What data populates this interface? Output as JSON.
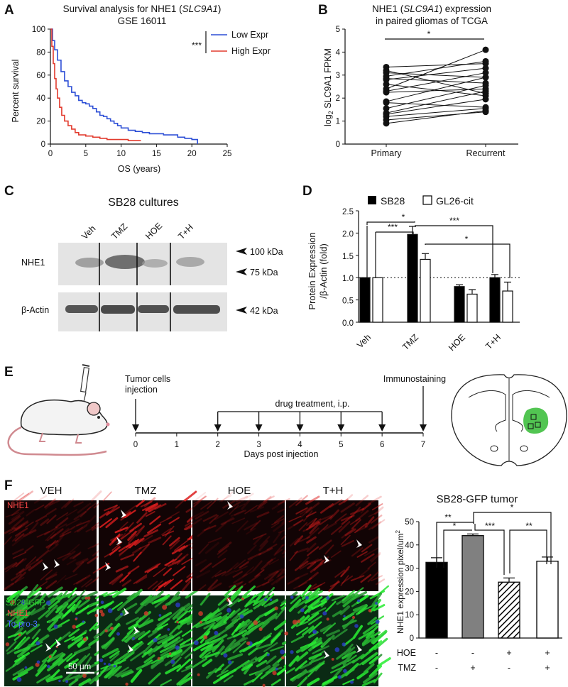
{
  "panels": {
    "A": {
      "letter": "A",
      "title_pre": "Survival analysis for NHE1 (",
      "title_gene": "SLC9A1",
      "title_post": ")",
      "subtitle": "GSE 16011",
      "legend_sig": "***",
      "chart_data": {
        "type": "line",
        "xlabel": "OS (years)",
        "ylabel": "Percent survival",
        "xlim": [
          0,
          25
        ],
        "ylim": [
          0,
          100
        ],
        "xticks": [
          "0",
          "5",
          "10",
          "15",
          "20",
          "25"
        ],
        "yticks": [
          "0",
          "20",
          "40",
          "60",
          "80",
          "100"
        ],
        "legend_position": "top-right",
        "series": [
          {
            "name": "Low Expr",
            "color": "#2d4fd6",
            "x": [
              0,
              0.3,
              0.6,
              1.0,
              1.5,
              2.0,
              2.5,
              3.0,
              3.5,
              4.0,
              4.5,
              5.0,
              5.5,
              6.0,
              6.5,
              7.0,
              7.5,
              8.0,
              8.5,
              9.0,
              9.5,
              10.0,
              11.0,
              12.0,
              13.0,
              14.0,
              15.0,
              16.0,
              17.0,
              18.0,
              19.0,
              20.0,
              20.8
            ],
            "y": [
              100,
              90,
              82,
              73,
              63,
              55,
              50,
              45,
              42,
              38,
              36,
              35,
              33,
              31,
              28,
              25,
              24,
              22,
              20,
              18,
              16,
              14,
              12,
              11,
              10,
              9,
              9,
              8,
              8,
              6,
              5,
              4,
              0
            ]
          },
          {
            "name": "High Expr",
            "color": "#e23b2e",
            "x": [
              0,
              0.2,
              0.4,
              0.6,
              0.8,
              1.0,
              1.3,
              1.6,
              2.0,
              2.5,
              3.0,
              3.5,
              4.0,
              5.0,
              6.0,
              7.0,
              8.0,
              9.0,
              10.0,
              11.0,
              12.0,
              12.8
            ],
            "y": [
              100,
              85,
              70,
              57,
              48,
              40,
              32,
              25,
              20,
              16,
              13,
              10,
              8,
              7,
              6,
              5,
              4,
              4,
              4,
              3,
              3,
              3
            ]
          }
        ]
      }
    },
    "B": {
      "letter": "B",
      "title_pre": "NHE1 (",
      "title_gene": "SLC9A1",
      "title_post": ") expression",
      "subtitle": "in paired gliomas of TCGA",
      "sig": "*",
      "chart_data": {
        "type": "scatter",
        "ylabel_sub": "2",
        "ylabel_pre": "log",
        "ylabel_post": " SLC9A1 FPKM",
        "ylim": [
          0,
          5
        ],
        "yticks": [
          "0",
          "1",
          "2",
          "3",
          "4",
          "5"
        ],
        "categories": [
          "Primary",
          "Recurrent"
        ],
        "pairs": [
          [
            3.35,
            3.5
          ],
          [
            3.2,
            2.2
          ],
          [
            3.1,
            2.9
          ],
          [
            2.95,
            3.6
          ],
          [
            2.85,
            2.65
          ],
          [
            2.8,
            3.3
          ],
          [
            2.6,
            2.1
          ],
          [
            2.4,
            4.1
          ],
          [
            2.3,
            3.1
          ],
          [
            2.25,
            2.4
          ],
          [
            1.85,
            2.9
          ],
          [
            1.8,
            1.6
          ],
          [
            1.35,
            2.3
          ],
          [
            1.3,
            1.95
          ],
          [
            1.2,
            1.55
          ],
          [
            1.05,
            1.4
          ],
          [
            0.9,
            1.45
          ],
          [
            1.55,
            2.55
          ]
        ]
      }
    },
    "C": {
      "letter": "C",
      "title": "SB28 cultures",
      "lanes": [
        "Veh",
        "TMZ",
        "HOE",
        "T+H"
      ],
      "row1_label": "NHE1",
      "row2_label": "β-Actin",
      "marker_100": "100 kDa",
      "marker_75": "75 kDa",
      "marker_42": "42 kDa"
    },
    "D": {
      "letter": "D",
      "chart_data": {
        "type": "bar",
        "ylabel_line1": "Protein Expression",
        "ylabel_line2": "/β-Actin (fold)",
        "ylim": [
          0,
          2.5
        ],
        "yticks": [
          "0.0",
          "0.5",
          "1.0",
          "1.5",
          "2.0",
          "2.5"
        ],
        "categories": [
          "Veh",
          "TMZ",
          "HOE",
          "T+H"
        ],
        "legend_position": "top",
        "series": [
          {
            "name": "SB28",
            "color": "#000000",
            "values": [
              1.0,
              1.97,
              0.8,
              1.0
            ],
            "errors": [
              0.0,
              0.18,
              0.04,
              0.07
            ]
          },
          {
            "name": "GL26-cit",
            "color": "#ffffff",
            "values": [
              1.0,
              1.41,
              0.63,
              0.7
            ],
            "errors": [
              0.0,
              0.13,
              0.1,
              0.2
            ]
          }
        ],
        "sig": [
          "*",
          "***",
          "***",
          "*"
        ]
      }
    },
    "E": {
      "letter": "E",
      "label_injection_1": "Tumor cells",
      "label_injection_2": "injection",
      "label_drug": "drug treatment, i.p.",
      "label_immuno": "Immunostaining",
      "days": [
        "0",
        "1",
        "2",
        "3",
        "4",
        "5",
        "6",
        "7"
      ],
      "xlabel": "Days post injection"
    },
    "F": {
      "letter": "F",
      "columns": [
        "VEH",
        "TMZ",
        "HOE",
        "T+H"
      ],
      "top_label": "NHE1",
      "merge_label_1": "SB28-GFP",
      "merge_label_2": "NHE1",
      "merge_label_3": "To-pro-3",
      "scale_bar": "50 μm",
      "chart_data": {
        "type": "bar",
        "title": "SB28-GFP tumor",
        "ylabel": "NHE1 expression pixel/um",
        "ylabel_sup": "2",
        "ylim": [
          0,
          50
        ],
        "yticks": [
          "0",
          "10",
          "20",
          "30",
          "40",
          "50"
        ],
        "categories": [
          "Veh",
          "TMZ",
          "HOE",
          "T+H"
        ],
        "values": [
          32.5,
          44,
          24,
          33
        ],
        "errors": [
          2.0,
          0.7,
          1.8,
          1.8
        ],
        "fills": [
          "#000000",
          "#808080",
          "hatched",
          "#ffffff"
        ],
        "row_hoe_label": "HOE",
        "row_tmz_label": "TMZ",
        "row_hoe": [
          "-",
          "-",
          "+",
          "+"
        ],
        "row_tmz": [
          "-",
          "+",
          "-",
          "+"
        ],
        "sig": [
          "**",
          "*",
          "***",
          "**",
          "*"
        ]
      }
    }
  }
}
